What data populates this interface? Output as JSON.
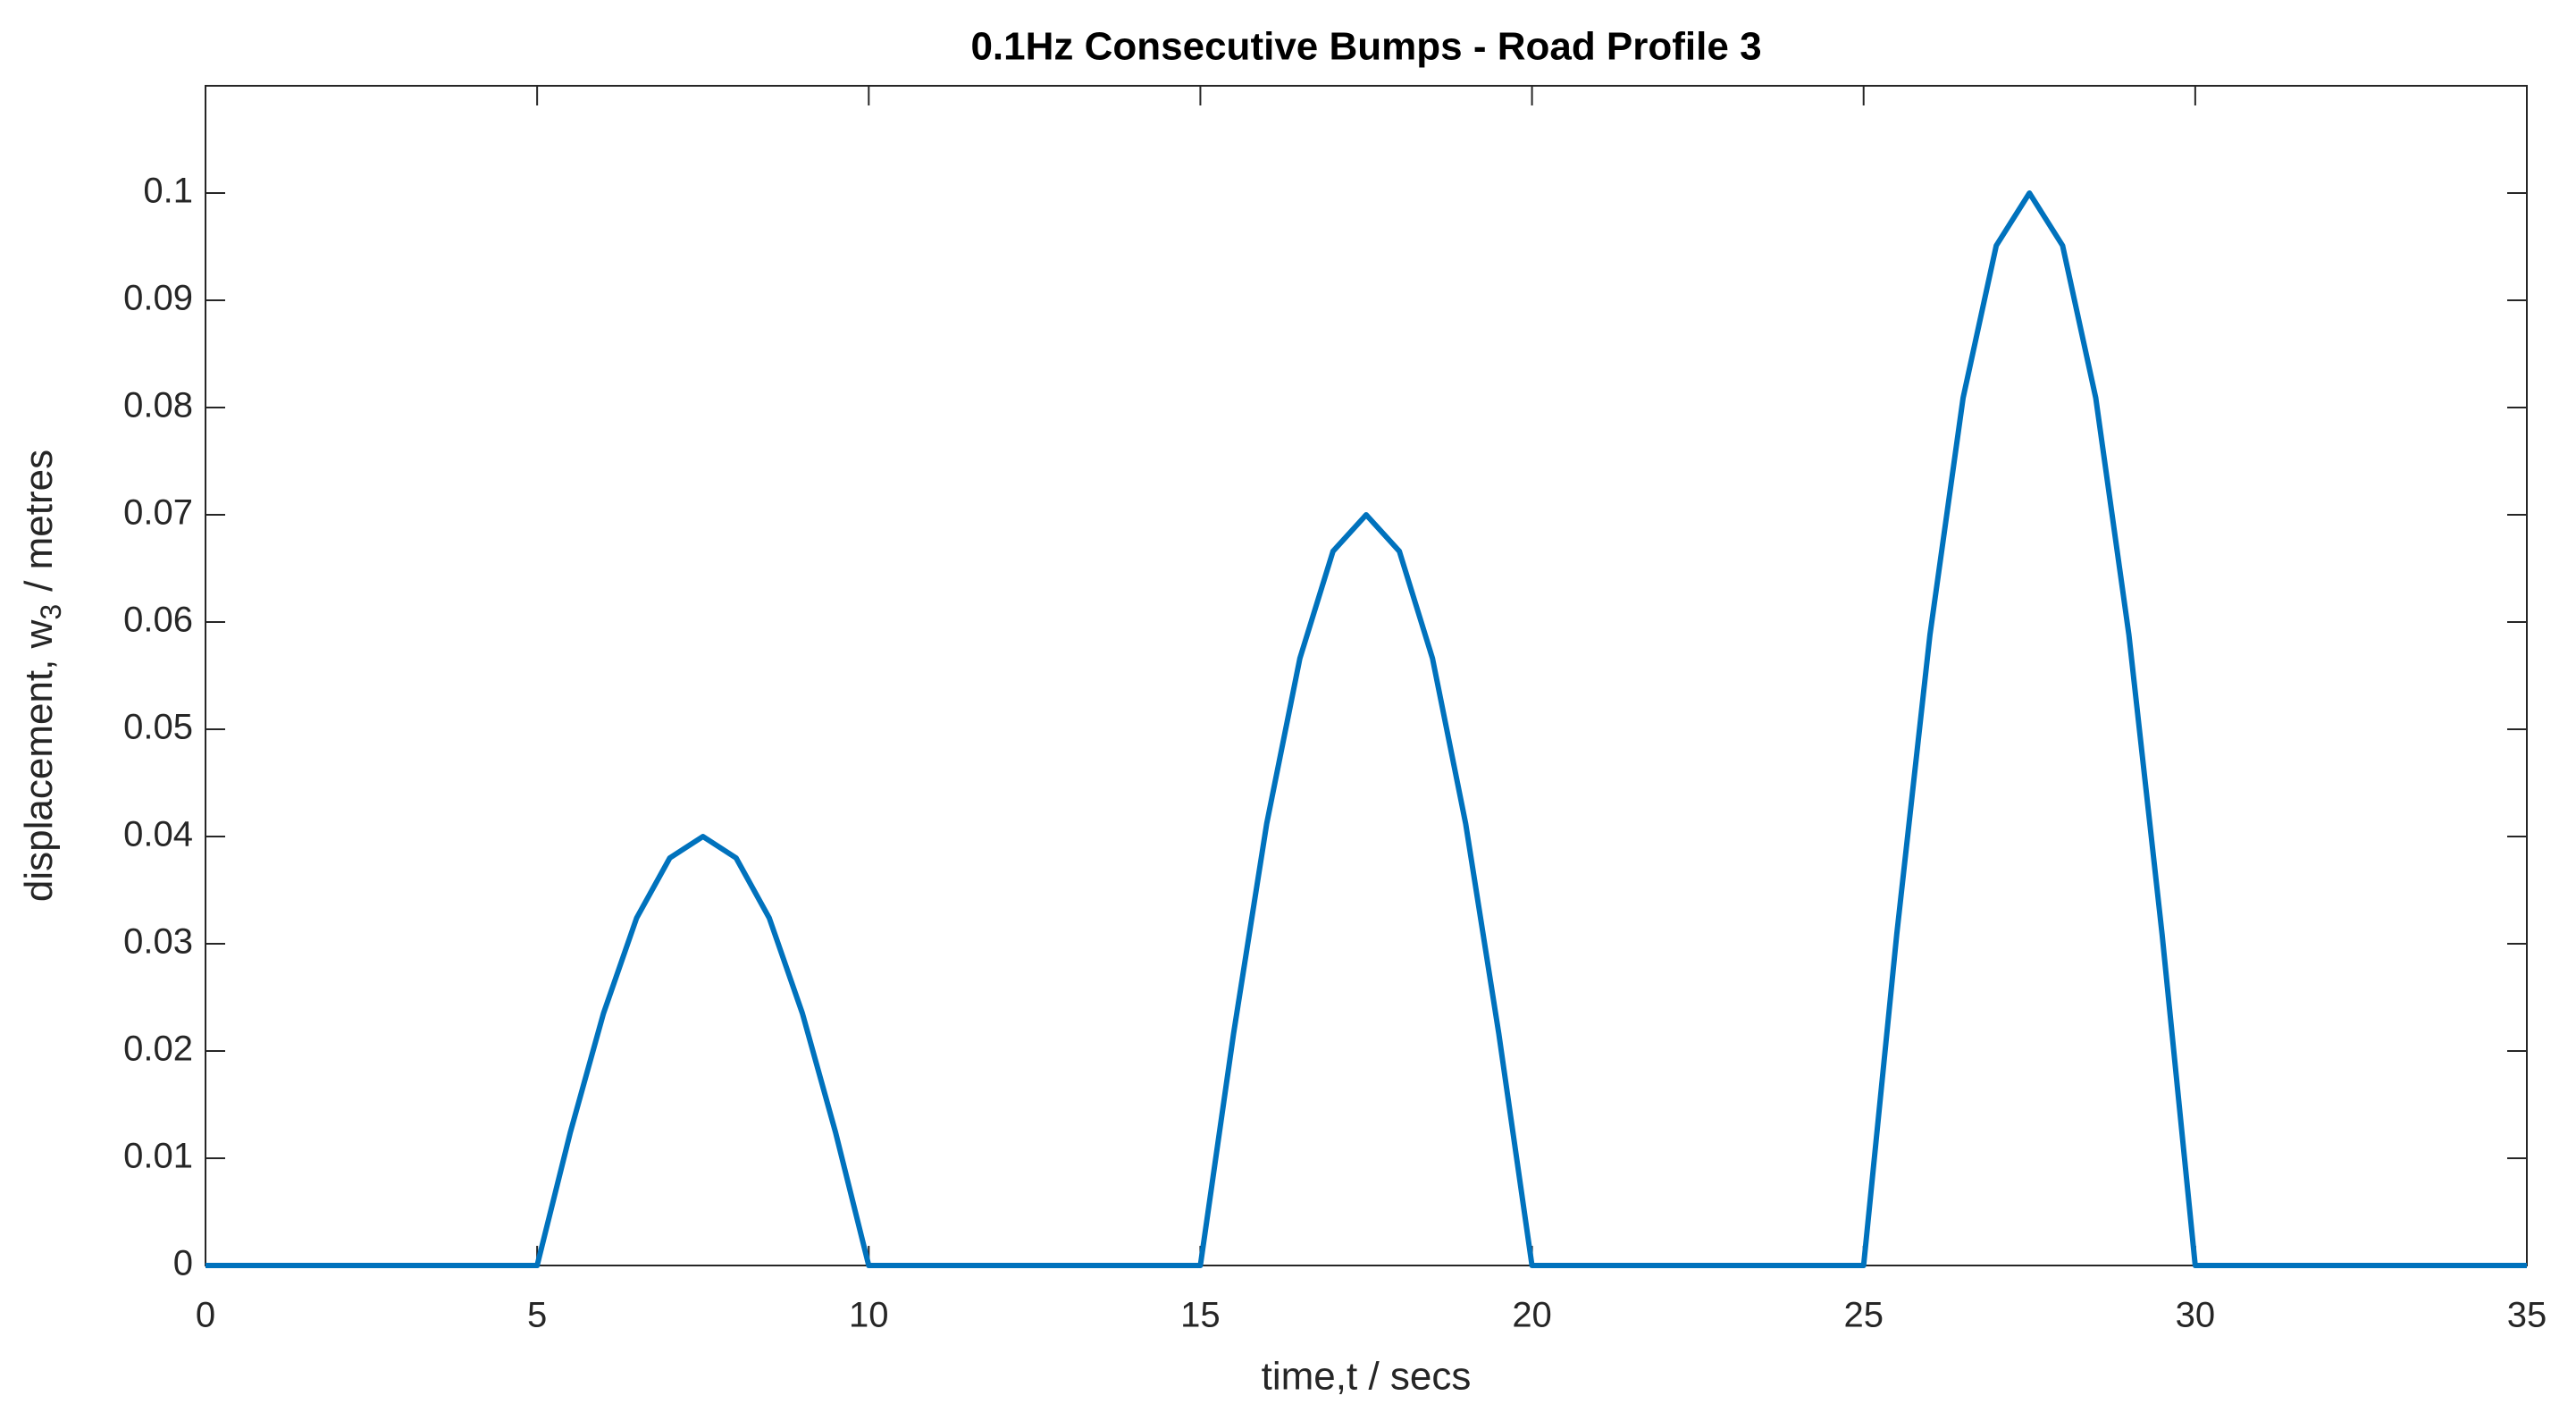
{
  "chart_data": {
    "type": "line",
    "title": "0.1Hz Consecutive Bumps - Road Profile 3",
    "xlabel": "time,t / secs",
    "ylabel": "displacement, w",
    "ylabel_subscript": "3",
    "ylabel_suffix": "/ metres",
    "x": [
      0,
      5,
      5.5,
      6,
      6.5,
      7,
      7.5,
      8,
      8.5,
      9,
      9.5,
      10,
      15,
      15.5,
      16,
      16.5,
      17,
      17.5,
      18,
      18.5,
      19,
      19.5,
      20,
      25,
      25.5,
      26,
      26.5,
      27,
      27.5,
      28,
      28.5,
      29,
      29.5,
      30,
      35
    ],
    "series": [
      {
        "color": "#0072bd",
        "values": [
          0,
          0,
          0.0124,
          0.0235,
          0.0324,
          0.038,
          0.04,
          0.038,
          0.0324,
          0.0235,
          0.0124,
          0,
          0,
          0.0216,
          0.0412,
          0.0566,
          0.0666,
          0.07,
          0.0666,
          0.0566,
          0.0412,
          0.0216,
          0,
          0,
          0.0309,
          0.0588,
          0.0809,
          0.0951,
          0.1,
          0.0951,
          0.0809,
          0.0588,
          0.0309,
          0,
          0
        ]
      }
    ],
    "xlim": [
      0,
      35
    ],
    "xticks": [
      0,
      5,
      10,
      15,
      20,
      25,
      30,
      35
    ],
    "ylim": [
      0,
      0.11
    ],
    "yticks": [
      0,
      0.01,
      0.02,
      0.03,
      0.04,
      0.05,
      0.06,
      0.07,
      0.08,
      0.09,
      0.1
    ],
    "grid": false
  }
}
